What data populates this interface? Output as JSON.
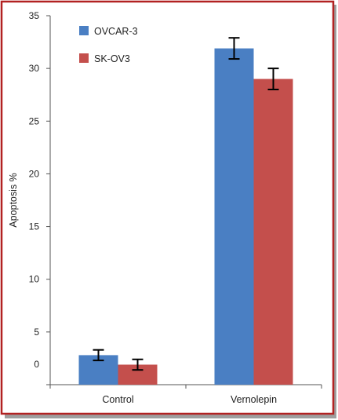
{
  "chart_data": {
    "type": "bar",
    "title": "",
    "xlabel": "",
    "ylabel": "Apoptosis %",
    "ylim": [
      0,
      35
    ],
    "yticks": [
      0,
      5,
      10,
      15,
      20,
      25,
      30,
      35
    ],
    "categories": [
      "Control",
      "Vernolepin"
    ],
    "series": [
      {
        "name": "OVCAR-3",
        "values": [
          2.8,
          31.9
        ],
        "errors": [
          0.5,
          1.0
        ]
      },
      {
        "name": "SK-OV3",
        "values": [
          1.9,
          29.0
        ],
        "errors": [
          0.5,
          1.0
        ]
      }
    ],
    "grid": false,
    "legend_position": "top-left"
  },
  "colors": {
    "series": [
      "#4a7fc3",
      "#c44f4c"
    ],
    "frame_outer": "#b22222",
    "axis": "#555555",
    "error_bar": "#000000"
  }
}
